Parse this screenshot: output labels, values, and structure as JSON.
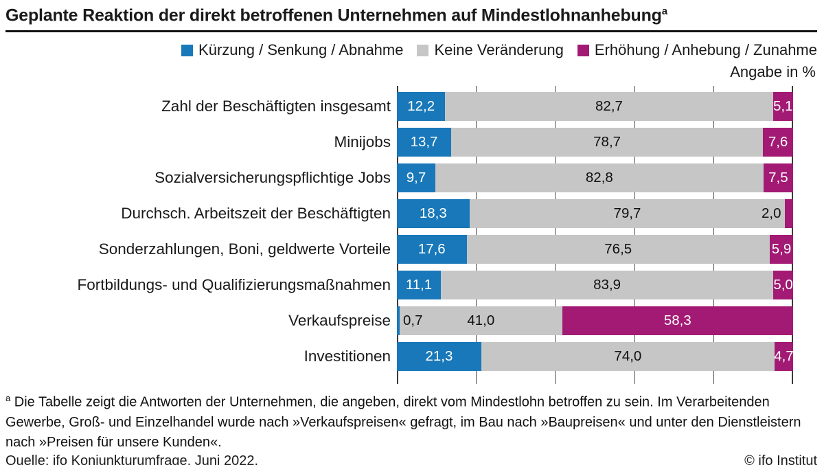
{
  "title": {
    "text": "Geplante Reaktion der direkt betroffenen Unternehmen auf Mindestlohnanhebung",
    "superscript": "a"
  },
  "unit_note": "Angabe in %",
  "colors": {
    "blue": "#1878b9",
    "gray": "#c6c6c6",
    "magenta": "#a21a74",
    "grid": "#4d4d4d"
  },
  "legend": [
    {
      "label": "Kürzung / Senkung / Abnahme",
      "color": "#1878b9"
    },
    {
      "label": "Keine Veränderung",
      "color": "#c6c6c6"
    },
    {
      "label": "Erhöhung / Anhebung / Zunahme",
      "color": "#a21a74"
    }
  ],
  "chart_data": {
    "type": "bar",
    "orientation": "horizontal",
    "stacked": true,
    "unit": "%",
    "xlim": [
      0,
      100
    ],
    "grid_ticks_percent": [
      0,
      20,
      40,
      60,
      80,
      100
    ],
    "legend_position": "top",
    "series_names": [
      "Kürzung / Senkung / Abnahme",
      "Keine Veränderung",
      "Erhöhung / Anhebung / Zunahme"
    ],
    "categories": [
      "Zahl der Beschäftigten insgesamt",
      "Minijobs",
      "Sozialversicherungspflichtige Jobs",
      "Durchsch. Arbeitszeit der Beschäftigten",
      "Sonderzahlungen, Boni, geldwerte Vorteile",
      "Fortbildungs- und Qualifizierungsmaßnahmen",
      "Verkaufspreise",
      "Investitionen"
    ],
    "rows": [
      {
        "label": "Zahl der Beschäftigten insgesamt",
        "values": [
          12.2,
          82.7,
          5.1
        ],
        "display": [
          "12,2",
          "82,7",
          "5,1"
        ]
      },
      {
        "label": "Minijobs",
        "values": [
          13.7,
          78.7,
          7.6
        ],
        "display": [
          "13,7",
          "78,7",
          "7,6"
        ]
      },
      {
        "label": "Sozialversicherungspflichtige Jobs",
        "values": [
          9.7,
          82.8,
          7.5
        ],
        "display": [
          "9,7",
          "82,8",
          "7,5"
        ]
      },
      {
        "label": "Durchsch. Arbeitszeit der Beschäftigten",
        "values": [
          18.3,
          79.7,
          2.0
        ],
        "display": [
          "18,3",
          "79,7",
          "2,0"
        ]
      },
      {
        "label": "Sonderzahlungen, Boni, geldwerte Vorteile",
        "values": [
          17.6,
          76.5,
          5.9
        ],
        "display": [
          "17,6",
          "76,5",
          "5,9"
        ]
      },
      {
        "label": "Fortbildungs- und Qualifizierungsmaßnahmen",
        "values": [
          11.1,
          83.9,
          5.0
        ],
        "display": [
          "11,1",
          "83,9",
          "5,0"
        ]
      },
      {
        "label": "Verkaufspreise",
        "values": [
          0.7,
          41.0,
          58.3
        ],
        "display": [
          "0,7",
          "41,0",
          "58,3"
        ]
      },
      {
        "label": "Investitionen",
        "values": [
          21.3,
          74.0,
          4.7
        ],
        "display": [
          "21,3",
          "74,0",
          "4,7"
        ]
      }
    ]
  },
  "footnote": {
    "marker": "a",
    "text": "Die Tabelle zeigt die Antworten der Unternehmen, die angeben, direkt vom Mindestlohn betroffen zu sein. Im Verarbeitenden Gewerbe, Groß- und Einzelhandel wurde nach »Verkaufspreisen« gefragt, im Bau nach »Baupreisen« und unter den Dienstleistern nach »Preisen für unsere Kunden«."
  },
  "source": "Quelle: ifo Konjunkturumfrage, Juni 2022.",
  "copyright": "© ifo Institut"
}
